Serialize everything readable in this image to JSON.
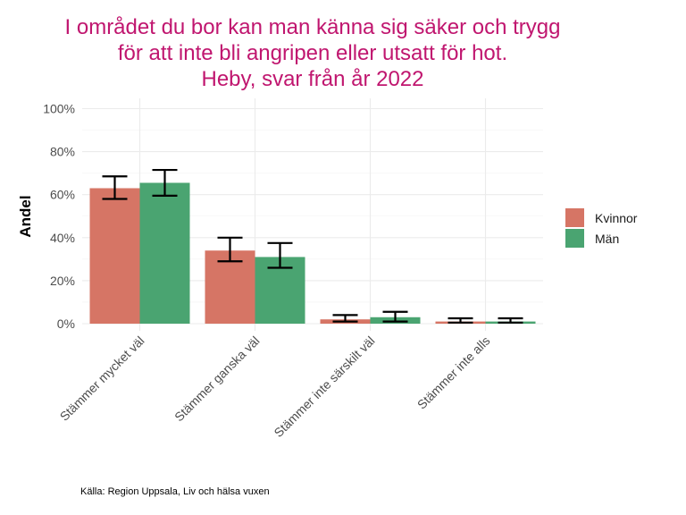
{
  "chart_data": {
    "type": "bar",
    "title_lines": [
      "I området du bor kan man känna sig säker och trygg",
      "för att inte bli angripen eller utsatt för hot.",
      "Heby, svar från år 2022"
    ],
    "xlabel": "",
    "ylabel": "Andel",
    "ylim": [
      0,
      1.0
    ],
    "yticks": [
      0,
      0.2,
      0.4,
      0.6,
      0.8,
      1.0
    ],
    "ytick_labels": [
      "0%",
      "20%",
      "40%",
      "60%",
      "80%",
      "100%"
    ],
    "categories": [
      "Stämmer mycket väl",
      "Stämmer ganska väl",
      "Stämmer inte särskilt väl",
      "Stämmer inte alls"
    ],
    "series": [
      {
        "name": "Kvinnor",
        "color": "#d67565",
        "values": [
          0.63,
          0.34,
          0.02,
          0.01
        ],
        "ci_low": [
          0.58,
          0.29,
          0.01,
          0.005
        ],
        "ci_high": [
          0.685,
          0.4,
          0.04,
          0.025
        ]
      },
      {
        "name": "Män",
        "color": "#4aa471",
        "values": [
          0.655,
          0.31,
          0.03,
          0.01
        ],
        "ci_low": [
          0.595,
          0.26,
          0.01,
          0.005
        ],
        "ci_high": [
          0.715,
          0.375,
          0.055,
          0.025
        ]
      }
    ],
    "grid": true,
    "legend_position": "right",
    "caption": "Källa: Region Uppsala, Liv och hälsa vuxen"
  }
}
